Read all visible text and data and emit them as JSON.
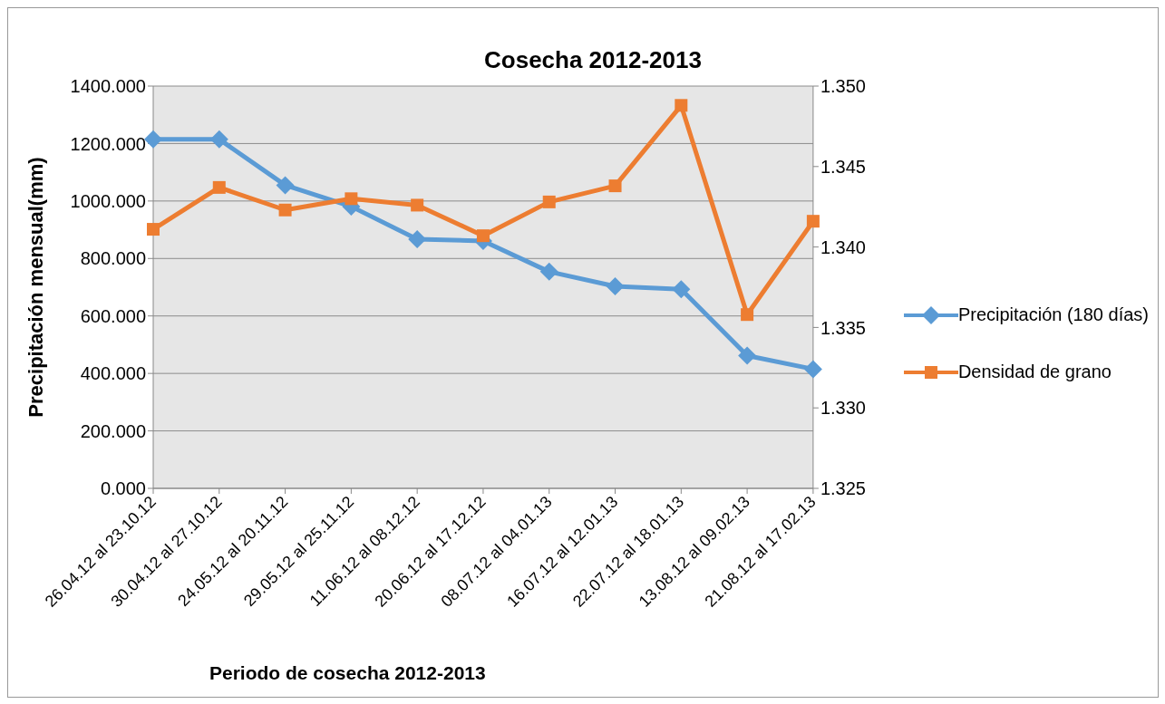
{
  "chart_data": {
    "type": "line",
    "title": "Cosecha 2012-2013",
    "xlabel": "Periodo de cosecha 2012-2013",
    "ylabel": "Precipitación  mensual(mm)",
    "categories": [
      "26.04.12 al 23.10.12",
      "30.04.12 al 27.10.12",
      "24.05.12 al 20.11.12",
      "29.05.12 al 25.11.12",
      "11.06.12 al 08.12.12",
      "20.06.12 al 17.12.12",
      "08.07.12 al 04.01.13",
      "16.07.12 al 12.01.13",
      "22.07.12 al 18.01.13",
      "13.08.12 al 09.02.13",
      "21.08.12 al 17.02.13"
    ],
    "series": [
      {
        "name": "Precipitación (180 días)",
        "color": "#5b9bd5",
        "marker": "diamond",
        "values": [
          1215,
          1215,
          1055,
          981,
          867,
          861,
          754,
          703,
          693,
          462,
          415
        ]
      },
      {
        "name": "Densidad de grano",
        "color": "#ed7d31",
        "marker": "square",
        "axis": "y2",
        "values": [
          1.3411,
          1.3437,
          1.3423,
          1.343,
          1.3426,
          1.3407,
          1.3428,
          1.3438,
          1.3488,
          1.3358,
          1.3416
        ]
      }
    ],
    "ylim": [
      0,
      1400
    ],
    "yticks": [
      {
        "value": 0,
        "label": "0.000"
      },
      {
        "value": 200,
        "label": "200.000"
      },
      {
        "value": 400,
        "label": "400.000"
      },
      {
        "value": 600,
        "label": "600.000"
      },
      {
        "value": 800,
        "label": "800.000"
      },
      {
        "value": 1000,
        "label": "1000.000"
      },
      {
        "value": 1200,
        "label": "1200.000"
      },
      {
        "value": 1400,
        "label": "1400.000"
      }
    ],
    "y2lim": [
      1.325,
      1.35
    ],
    "y2ticks": [
      {
        "value": 1.325,
        "label": "1.325"
      },
      {
        "value": 1.33,
        "label": "1.330"
      },
      {
        "value": 1.335,
        "label": "1.335"
      },
      {
        "value": 1.34,
        "label": "1.340"
      },
      {
        "value": 1.345,
        "label": "1.345"
      },
      {
        "value": 1.35,
        "label": "1.350"
      }
    ],
    "grid": "y",
    "legend": "right",
    "line_style": "solid"
  }
}
